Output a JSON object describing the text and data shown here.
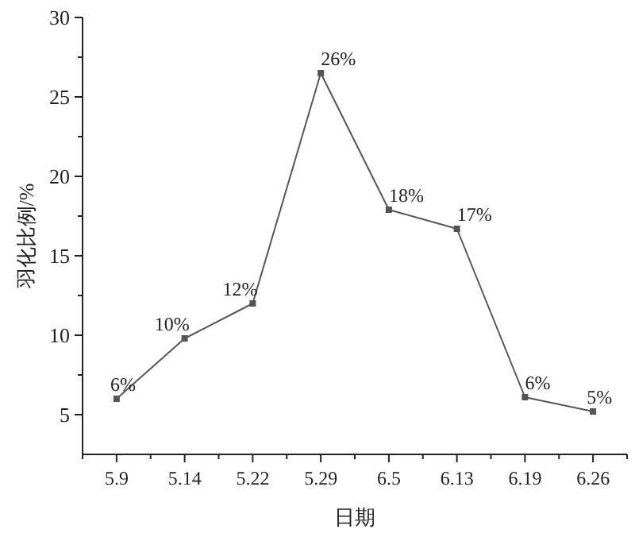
{
  "chart_data": {
    "type": "line",
    "xlabel": "日期",
    "ylabel": "羽化比例/%",
    "categories": [
      "5.9",
      "5.14",
      "5.22",
      "5.29",
      "6.5",
      "6.13",
      "6.19",
      "6.26"
    ],
    "series": [
      {
        "color": "#555555",
        "values": [
          6.0,
          9.8,
          12.0,
          26.5,
          17.9,
          16.7,
          6.1,
          5.2
        ],
        "value_labels": [
          "6%",
          "10%",
          "12%",
          "26%",
          "18%",
          "17%",
          "6%",
          "5%"
        ]
      }
    ],
    "ylim": [
      2.5,
      30
    ],
    "yticks": [
      5,
      10,
      15,
      20,
      25,
      30
    ],
    "marker": "square",
    "line_style": "solid"
  }
}
